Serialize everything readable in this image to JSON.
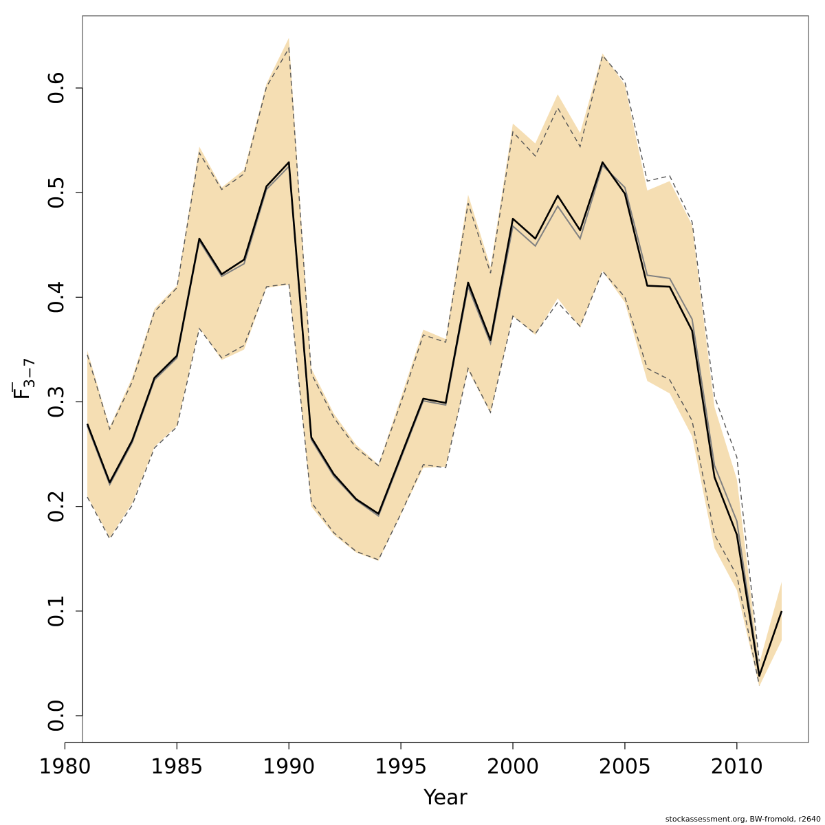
{
  "chart_data": {
    "type": "line",
    "xlabel": "Year",
    "ylabel_main": "F",
    "ylabel_sub": "3−7",
    "xlim": [
      1980,
      2013
    ],
    "ylim": [
      0.0,
      0.65
    ],
    "xticks": [
      1980,
      1985,
      1990,
      1995,
      2000,
      2005,
      2010
    ],
    "yticks": [
      0.0,
      0.1,
      0.2,
      0.3,
      0.4,
      0.5,
      0.6
    ],
    "ytick_labels": [
      "0.0",
      "0.1",
      "0.2",
      "0.3",
      "0.4",
      "0.5",
      "0.6"
    ],
    "grid": false,
    "colors": {
      "band": "#f5deb3",
      "current": "#000000",
      "previous": "#808080",
      "previous_ci": "#555555"
    },
    "years": [
      1981,
      1982,
      1983,
      1984,
      1985,
      1986,
      1987,
      1988,
      1989,
      1990,
      1991,
      1992,
      1993,
      1994,
      1995,
      1996,
      1997,
      1998,
      1999,
      2000,
      2001,
      2002,
      2003,
      2004,
      2005,
      2006,
      2007,
      2008,
      2009,
      2010,
      2011,
      2012
    ],
    "series": [
      {
        "role": "estimate",
        "values": [
          0.279,
          0.223,
          0.263,
          0.323,
          0.344,
          0.456,
          0.422,
          0.436,
          0.506,
          0.529,
          0.266,
          0.231,
          0.207,
          0.193,
          0.248,
          0.303,
          0.299,
          0.414,
          0.359,
          0.475,
          0.456,
          0.497,
          0.464,
          0.529,
          0.499,
          0.411,
          0.41,
          0.368,
          0.228,
          0.173,
          0.038,
          0.1
        ]
      },
      {
        "role": "estimate_lower",
        "values": [
          0.21,
          0.17,
          0.203,
          0.257,
          0.277,
          0.371,
          0.34,
          0.35,
          0.409,
          0.412,
          0.2,
          0.173,
          0.156,
          0.148,
          0.192,
          0.237,
          0.238,
          0.33,
          0.289,
          0.382,
          0.364,
          0.399,
          0.371,
          0.425,
          0.395,
          0.32,
          0.308,
          0.267,
          0.16,
          0.12,
          0.028,
          0.072
        ]
      },
      {
        "role": "estimate_upper",
        "values": [
          0.349,
          0.276,
          0.323,
          0.389,
          0.411,
          0.544,
          0.505,
          0.522,
          0.604,
          0.648,
          0.332,
          0.289,
          0.259,
          0.24,
          0.304,
          0.369,
          0.36,
          0.498,
          0.429,
          0.566,
          0.547,
          0.594,
          0.557,
          0.633,
          0.603,
          0.502,
          0.511,
          0.469,
          0.295,
          0.226,
          0.05,
          0.128
        ]
      },
      {
        "role": "previous_estimate",
        "values": [
          0.277,
          0.221,
          0.261,
          0.321,
          0.342,
          0.454,
          0.42,
          0.432,
          0.503,
          0.525,
          0.264,
          0.229,
          0.206,
          0.191,
          0.246,
          0.301,
          0.297,
          0.41,
          0.356,
          0.468,
          0.449,
          0.487,
          0.456,
          0.526,
          0.505,
          0.421,
          0.418,
          0.379,
          0.239,
          0.186,
          0.04
        ]
      },
      {
        "role": "previous_lower",
        "values": [
          0.209,
          0.169,
          0.201,
          0.256,
          0.276,
          0.37,
          0.342,
          0.354,
          0.41,
          0.413,
          0.204,
          0.175,
          0.157,
          0.149,
          0.193,
          0.24,
          0.237,
          0.332,
          0.29,
          0.382,
          0.365,
          0.395,
          0.372,
          0.425,
          0.4,
          0.332,
          0.321,
          0.282,
          0.173,
          0.134,
          0.029
        ]
      },
      {
        "role": "previous_upper",
        "values": [
          0.345,
          0.274,
          0.319,
          0.386,
          0.409,
          0.538,
          0.503,
          0.518,
          0.601,
          0.638,
          0.327,
          0.285,
          0.256,
          0.239,
          0.299,
          0.364,
          0.357,
          0.49,
          0.423,
          0.558,
          0.535,
          0.581,
          0.544,
          0.631,
          0.606,
          0.511,
          0.516,
          0.472,
          0.305,
          0.247,
          0.052
        ]
      }
    ]
  },
  "footnote": "stockassessment.org, BW-fromold, r2640"
}
